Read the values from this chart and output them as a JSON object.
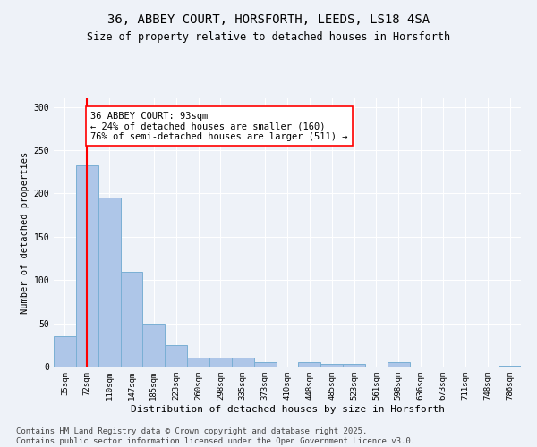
{
  "title1": "36, ABBEY COURT, HORSFORTH, LEEDS, LS18 4SA",
  "title2": "Size of property relative to detached houses in Horsforth",
  "xlabel": "Distribution of detached houses by size in Horsforth",
  "ylabel": "Number of detached properties",
  "categories": [
    "35sqm",
    "72sqm",
    "110sqm",
    "147sqm",
    "185sqm",
    "223sqm",
    "260sqm",
    "298sqm",
    "335sqm",
    "373sqm",
    "410sqm",
    "448sqm",
    "485sqm",
    "523sqm",
    "561sqm",
    "598sqm",
    "636sqm",
    "673sqm",
    "711sqm",
    "748sqm",
    "786sqm"
  ],
  "values": [
    35,
    232,
    195,
    110,
    50,
    25,
    10,
    10,
    10,
    5,
    0,
    5,
    3,
    3,
    0,
    5,
    0,
    0,
    0,
    0,
    1
  ],
  "bar_color": "#aec6e8",
  "bar_edgecolor": "#7aafd4",
  "bar_linewidth": 0.7,
  "vline_x": 1,
  "vline_color": "red",
  "vline_linewidth": 1.5,
  "annotation_text": "36 ABBEY COURT: 93sqm\n← 24% of detached houses are smaller (160)\n76% of semi-detached houses are larger (511) →",
  "annotation_box_edgecolor": "red",
  "annotation_box_facecolor": "white",
  "annotation_fontsize": 7.5,
  "ylim": [
    0,
    310
  ],
  "yticks": [
    0,
    50,
    100,
    150,
    200,
    250,
    300
  ],
  "background_color": "#eef2f8",
  "grid_color": "#ffffff",
  "footer1": "Contains HM Land Registry data © Crown copyright and database right 2025.",
  "footer2": "Contains public sector information licensed under the Open Government Licence v3.0.",
  "footer_fontsize": 6.5,
  "title_fontsize": 10,
  "subtitle_fontsize": 8.5,
  "xlabel_fontsize": 8,
  "ylabel_fontsize": 7.5,
  "tick_fontsize": 6.5
}
